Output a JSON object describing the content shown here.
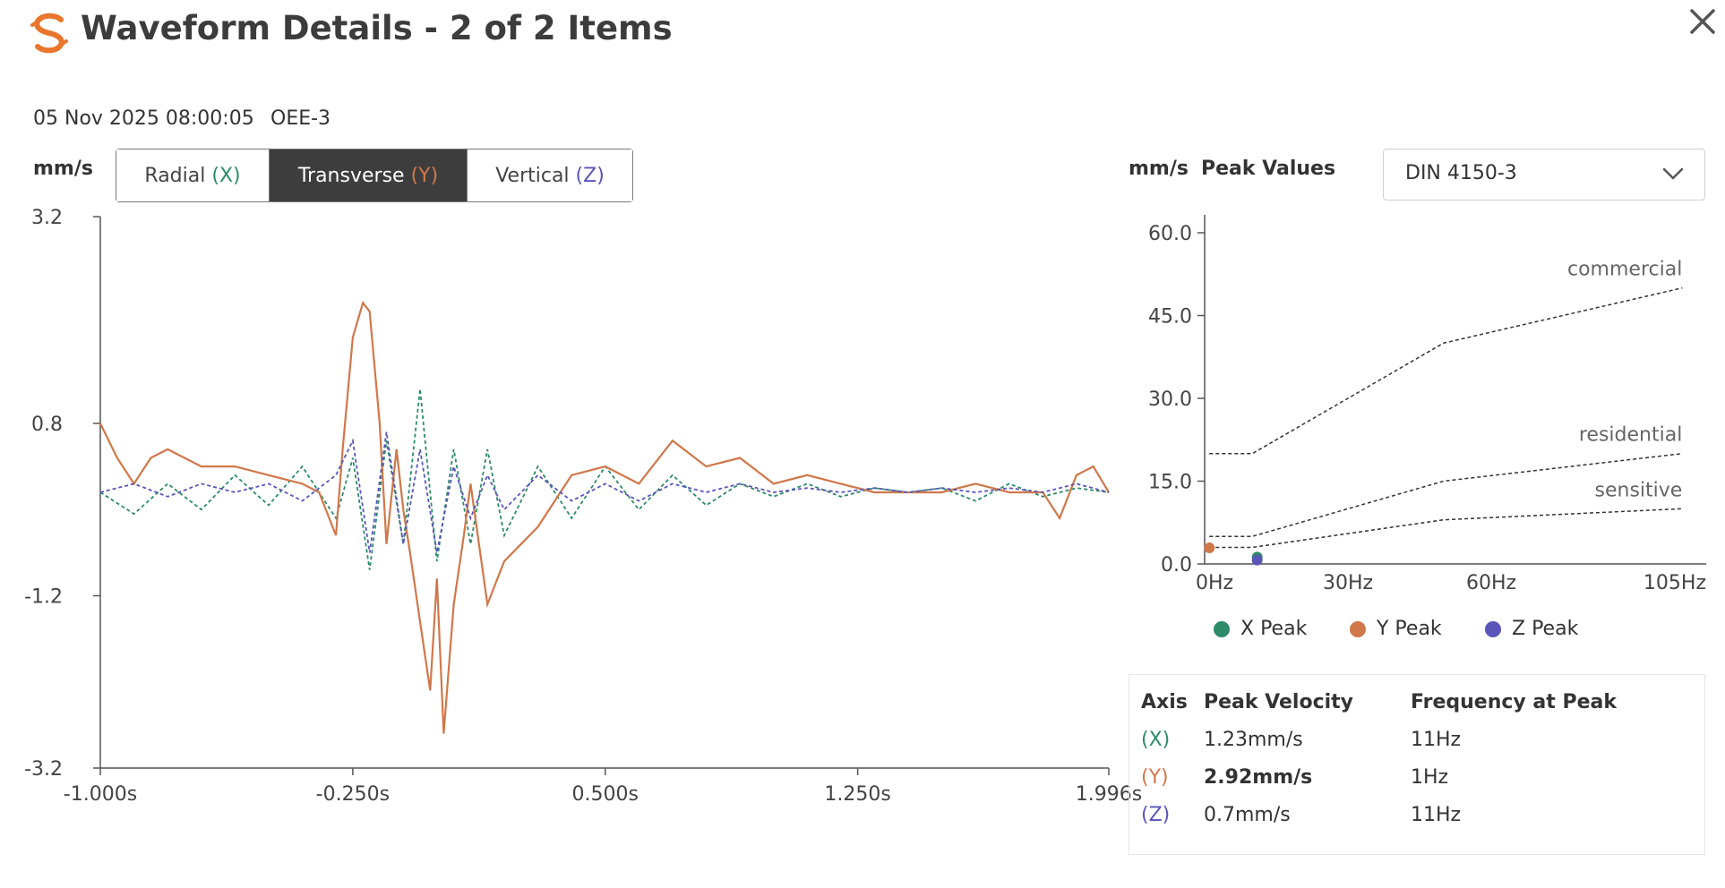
{
  "header": {
    "title": "Waveform Details - 2 of 2 Items",
    "logo_icon": "logo-icon",
    "close_icon": "close-icon"
  },
  "meta": {
    "timestamp": "05 Nov 2025 08:00:05",
    "device": "OEE-3"
  },
  "waveform": {
    "unit": "mm/s",
    "tabs": [
      {
        "label": "Radial",
        "axis": "(X)",
        "active": false
      },
      {
        "label": "Transverse",
        "axis": "(Y)",
        "active": true
      },
      {
        "label": "Vertical",
        "axis": "(Z)",
        "active": false
      }
    ]
  },
  "peak_panel": {
    "unit": "mm/s",
    "title": "Peak Values",
    "standard": "DIN 4150-3",
    "legend": [
      "X Peak",
      "Y Peak",
      "Z Peak"
    ]
  },
  "colors": {
    "x": "#2e8b6a",
    "y": "#d0784a",
    "z": "#5a55b8",
    "accent": "#e8762d",
    "dark": "#3d3d3d"
  },
  "table": {
    "headers": [
      "Axis",
      "Peak Velocity",
      "Frequency at Peak"
    ],
    "rows": [
      {
        "axis": "(X)",
        "velocity": "1.23mm/s",
        "frequency": "11Hz",
        "bold": false
      },
      {
        "axis": "(Y)",
        "velocity": "2.92mm/s",
        "frequency": "1Hz",
        "bold": true
      },
      {
        "axis": "(Z)",
        "velocity": "0.7mm/s",
        "frequency": "11Hz",
        "bold": false
      }
    ]
  },
  "chart_data": [
    {
      "type": "line",
      "ylim": [
        -3.2,
        3.2
      ],
      "y_ticks": [
        "3.2",
        "0.8",
        "-1.2",
        "-3.2"
      ],
      "x_ticks": [
        "-1.000s",
        "-0.250s",
        "0.500s",
        "1.250s",
        "1.996s"
      ],
      "xlim": [
        -1.0,
        1.996
      ],
      "series": [
        {
          "axis": "x",
          "style": "dashed",
          "x": [
            -1.0,
            -0.9,
            -0.8,
            -0.7,
            -0.6,
            -0.5,
            -0.4,
            -0.3,
            -0.25,
            -0.2,
            -0.15,
            -0.1,
            -0.05,
            0.0,
            0.05,
            0.1,
            0.15,
            0.2,
            0.3,
            0.4,
            0.5,
            0.6,
            0.7,
            0.8,
            0.9,
            1.0,
            1.1,
            1.2,
            1.3,
            1.4,
            1.5,
            1.6,
            1.7,
            1.8,
            1.9,
            1.996
          ],
          "y": [
            0.0,
            -0.25,
            0.1,
            -0.2,
            0.2,
            -0.15,
            0.3,
            -0.3,
            0.4,
            -0.9,
            0.6,
            -0.6,
            1.2,
            -0.8,
            0.5,
            -0.6,
            0.5,
            -0.5,
            0.3,
            -0.3,
            0.3,
            -0.2,
            0.2,
            -0.15,
            0.1,
            -0.05,
            0.1,
            -0.05,
            0.05,
            0.0,
            0.05,
            -0.1,
            0.1,
            -0.05,
            0.05,
            0.0
          ]
        },
        {
          "axis": "y",
          "style": "solid",
          "x": [
            -1.0,
            -0.95,
            -0.9,
            -0.85,
            -0.8,
            -0.7,
            -0.6,
            -0.5,
            -0.4,
            -0.35,
            -0.3,
            -0.28,
            -0.25,
            -0.22,
            -0.2,
            -0.17,
            -0.15,
            -0.12,
            -0.1,
            -0.08,
            -0.05,
            -0.02,
            0.0,
            0.02,
            0.05,
            0.08,
            0.1,
            0.15,
            0.2,
            0.3,
            0.4,
            0.5,
            0.6,
            0.7,
            0.8,
            0.9,
            1.0,
            1.1,
            1.2,
            1.3,
            1.4,
            1.5,
            1.6,
            1.7,
            1.8,
            1.85,
            1.9,
            1.95,
            1.996
          ],
          "y": [
            0.8,
            0.4,
            0.1,
            0.4,
            0.5,
            0.3,
            0.3,
            0.2,
            0.1,
            0.0,
            -0.5,
            0.5,
            1.8,
            2.2,
            2.1,
            0.8,
            -0.6,
            0.5,
            -0.2,
            -0.7,
            -1.5,
            -2.3,
            -1.0,
            -2.8,
            -1.3,
            -0.5,
            0.1,
            -1.3,
            -0.8,
            -0.4,
            0.2,
            0.3,
            0.1,
            0.6,
            0.3,
            0.4,
            0.1,
            0.2,
            0.1,
            0.0,
            0.0,
            0.0,
            0.1,
            0.0,
            0.0,
            -0.3,
            0.2,
            0.3,
            0.0
          ]
        },
        {
          "axis": "z",
          "style": "dashed",
          "x": [
            -1.0,
            -0.9,
            -0.8,
            -0.7,
            -0.6,
            -0.5,
            -0.4,
            -0.3,
            -0.25,
            -0.2,
            -0.15,
            -0.1,
            -0.05,
            0.0,
            0.05,
            0.1,
            0.15,
            0.2,
            0.3,
            0.4,
            0.5,
            0.6,
            0.7,
            0.8,
            0.9,
            1.0,
            1.1,
            1.2,
            1.3,
            1.4,
            1.5,
            1.6,
            1.7,
            1.8,
            1.9,
            1.996
          ],
          "y": [
            0.0,
            0.1,
            -0.05,
            0.1,
            0.0,
            0.1,
            -0.1,
            0.2,
            0.6,
            -0.7,
            0.7,
            -0.6,
            0.5,
            -0.7,
            0.3,
            -0.3,
            0.2,
            -0.2,
            0.2,
            -0.1,
            0.1,
            -0.1,
            0.1,
            0.0,
            0.1,
            0.0,
            0.05,
            0.0,
            0.05,
            0.0,
            0.05,
            0.0,
            0.05,
            0.0,
            0.1,
            0.0
          ]
        }
      ]
    },
    {
      "type": "line",
      "ylim": [
        0,
        60
      ],
      "y_ticks": [
        "60.0",
        "45.0",
        "30.0",
        "15.0",
        "0.0"
      ],
      "x_ticks": [
        "0Hz",
        "30Hz",
        "60Hz",
        "105Hz"
      ],
      "xlim": [
        0,
        105
      ],
      "series": [
        {
          "name": "commercial",
          "x": [
            1,
            10,
            50,
            100
          ],
          "y": [
            20,
            20,
            40,
            50
          ]
        },
        {
          "name": "residential",
          "x": [
            1,
            10,
            50,
            100
          ],
          "y": [
            5,
            5,
            15,
            20
          ]
        },
        {
          "name": "sensitive",
          "x": [
            1,
            10,
            50,
            100
          ],
          "y": [
            3,
            3,
            8,
            10
          ]
        }
      ],
      "points": [
        {
          "axis": "x",
          "x": 11,
          "y": 1.23
        },
        {
          "axis": "y",
          "x": 1,
          "y": 2.92
        },
        {
          "axis": "z",
          "x": 11,
          "y": 0.7
        }
      ]
    }
  ]
}
